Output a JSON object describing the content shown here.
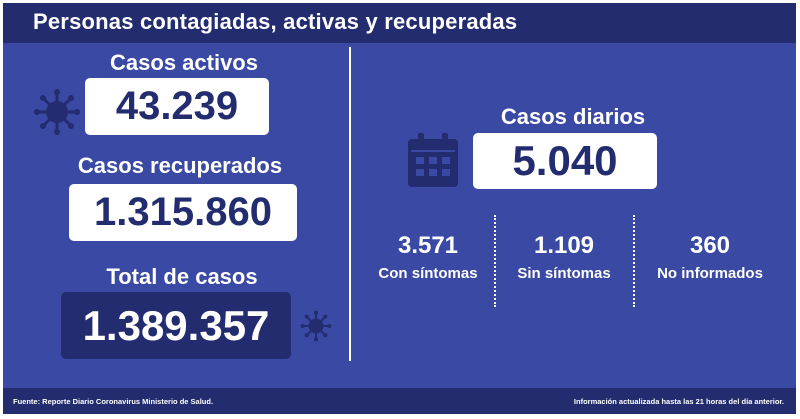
{
  "header": {
    "title": "Personas contagiadas, activas y recuperadas"
  },
  "left": {
    "active": {
      "label": "Casos activos",
      "value": "43.239"
    },
    "recovered": {
      "label": "Casos recuperados",
      "value": "1.315.860"
    },
    "total": {
      "label": "Total de casos",
      "value": "1.389.357"
    }
  },
  "right": {
    "daily": {
      "label": "Casos diarios",
      "value": "5.040"
    },
    "breakdown": [
      {
        "value": "3.571",
        "label": "Con síntomas"
      },
      {
        "value": "1.109",
        "label": "Sin síntomas"
      },
      {
        "value": "360",
        "label": "No informados"
      }
    ]
  },
  "footer": {
    "source": "Fuente: Reporte Diario Coronavirus Ministerio de Salud.",
    "updated": "Información actualizada hasta las 21 horas  del día anterior."
  },
  "icons": {
    "virus": "virus-icon",
    "calendar": "calendar-icon"
  },
  "colors": {
    "background": "#3a49a3",
    "dark": "#232c6e",
    "white": "#ffffff"
  }
}
